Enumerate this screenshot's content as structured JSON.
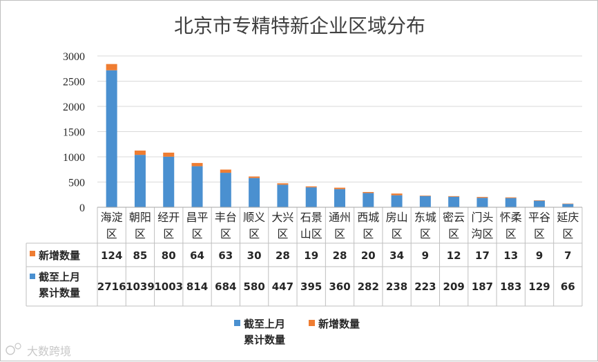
{
  "colors": {
    "cumulative": "#4a90d0",
    "new": "#ef7d32",
    "grid": "#d9d9d9",
    "table_border": "#bfbfbf"
  },
  "watermark": {
    "text": "大数跨境"
  },
  "chart_data": {
    "type": "bar",
    "stacked": true,
    "title": "北京市专精特新企业区域分布",
    "ylim": [
      0,
      3000
    ],
    "yticks": [
      0,
      500,
      1000,
      1500,
      2000,
      2500,
      3000
    ],
    "grid": true,
    "legend_position": "bottom",
    "categories": [
      [
        "海淀",
        "区"
      ],
      [
        "朝阳",
        "区"
      ],
      [
        "经开",
        "区"
      ],
      [
        "昌平",
        "区"
      ],
      [
        "丰台",
        "区"
      ],
      [
        "顺义",
        "区"
      ],
      [
        "大兴",
        "区"
      ],
      [
        "石景",
        "山区"
      ],
      [
        "通州",
        "区"
      ],
      [
        "西城",
        "区"
      ],
      [
        "房山",
        "区"
      ],
      [
        "东城",
        "区"
      ],
      [
        "密云",
        "区"
      ],
      [
        "门头",
        "沟区"
      ],
      [
        "怀柔",
        "区"
      ],
      [
        "平谷",
        "区"
      ],
      [
        "延庆",
        "区"
      ]
    ],
    "series": [
      {
        "name": [
          "截至上月",
          "累计数量"
        ],
        "legend_name": [
          "截至上月",
          "累计数量"
        ],
        "values": [
          2716,
          1039,
          1003,
          814,
          684,
          580,
          447,
          395,
          360,
          282,
          238,
          223,
          209,
          187,
          183,
          129,
          66
        ]
      },
      {
        "name": [
          "新增数量"
        ],
        "legend_name": [
          "新增数量"
        ],
        "values": [
          124,
          85,
          80,
          64,
          63,
          30,
          28,
          19,
          28,
          20,
          34,
          9,
          12,
          17,
          13,
          9,
          7
        ]
      }
    ]
  }
}
